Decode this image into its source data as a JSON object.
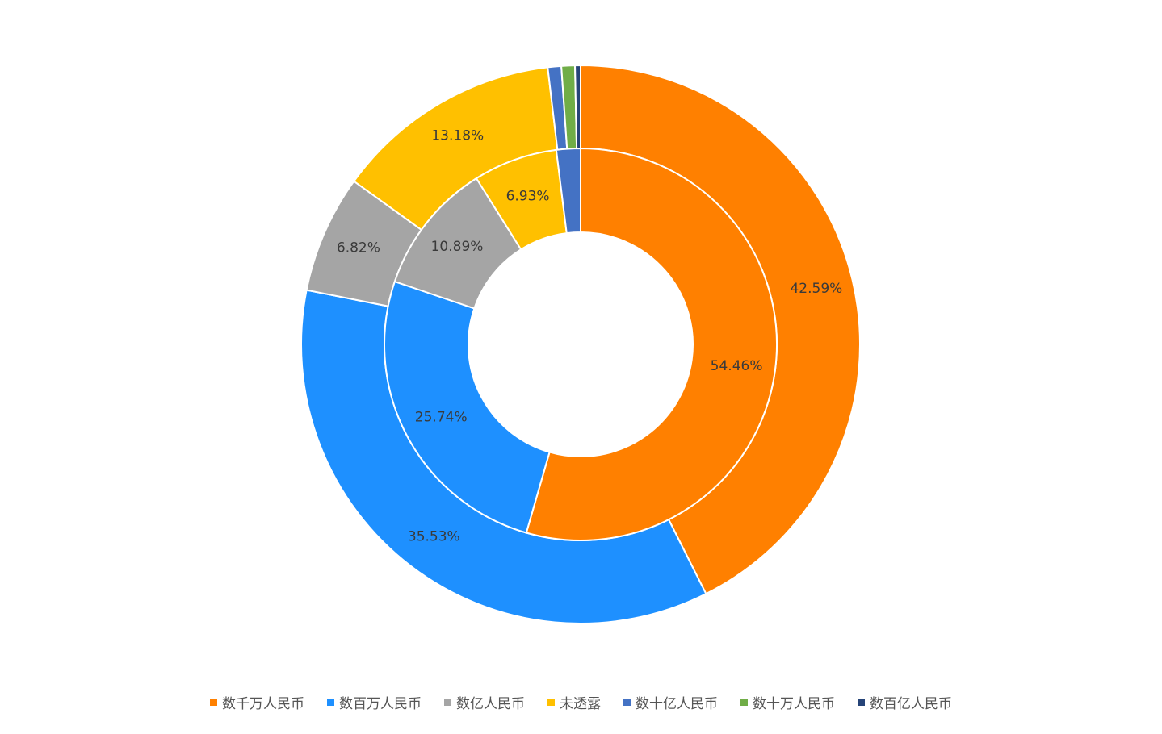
{
  "chart_data": {
    "type": "pie",
    "categories": [
      "数千万人民币",
      "数百万人民币",
      "数亿人民币",
      "未透露",
      "数十亿人民币",
      "数十万人民币",
      "数百亿人民币"
    ],
    "colors": [
      "#FF8000",
      "#1E90FF",
      "#A5A5A5",
      "#FFC000",
      "#4472C4",
      "#70AD47",
      "#264478"
    ],
    "series": [
      {
        "ring": "inner",
        "values": [
          54.46,
          25.74,
          10.89,
          6.93,
          1.98,
          0,
          0
        ],
        "labels": [
          "54.46%",
          "25.74%",
          "10.89%",
          "6.93%",
          "",
          "",
          ""
        ]
      },
      {
        "ring": "outer",
        "values": [
          42.59,
          35.53,
          6.82,
          13.18,
          0.78,
          0.78,
          0.32
        ],
        "labels": [
          "42.59%",
          "35.53%",
          "6.82%",
          "13.18%",
          "",
          "",
          ""
        ]
      }
    ],
    "legend_position": "bottom"
  }
}
